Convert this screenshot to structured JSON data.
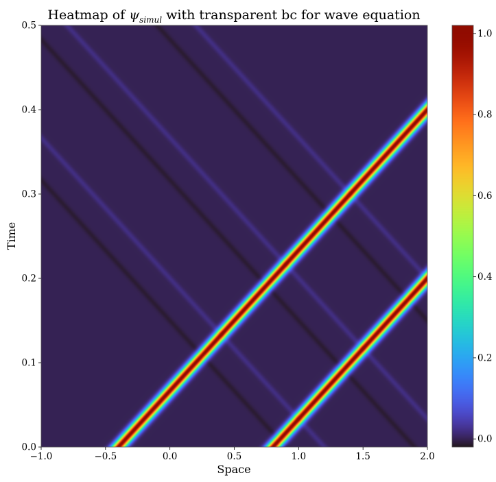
{
  "chart_data": {
    "type": "heatmap",
    "title_prefix": "Heatmap of ",
    "title_symbol": "ψ",
    "title_subscript": "simul",
    "title_suffix": " with transparent bc for wave equation",
    "xlabel": "Space",
    "ylabel": "Time",
    "xlim": [
      -1.0,
      2.0
    ],
    "ylim": [
      0.0,
      0.5
    ],
    "x_ticks": [
      {
        "value": -1.0,
        "label": "−1.0"
      },
      {
        "value": -0.5,
        "label": "−0.5"
      },
      {
        "value": 0.0,
        "label": "0.0"
      },
      {
        "value": 0.5,
        "label": "0.5"
      },
      {
        "value": 1.0,
        "label": "1.0"
      },
      {
        "value": 1.5,
        "label": "1.5"
      },
      {
        "value": 2.0,
        "label": "2.0"
      }
    ],
    "y_ticks": [
      {
        "value": 0.0,
        "label": "0.0"
      },
      {
        "value": 0.1,
        "label": "0.1"
      },
      {
        "value": 0.2,
        "label": "0.2"
      },
      {
        "value": 0.3,
        "label": "0.3"
      },
      {
        "value": 0.4,
        "label": "0.4"
      },
      {
        "value": 0.5,
        "label": "0.5"
      }
    ],
    "colorbar": {
      "range": [
        -0.02,
        1.02
      ],
      "colormap": "turbo",
      "ticks": [
        {
          "value": 0.0,
          "label": "0.0"
        },
        {
          "value": 0.2,
          "label": "0.2"
        },
        {
          "value": 0.4,
          "label": "0.4"
        },
        {
          "value": 0.6,
          "label": "0.6"
        },
        {
          "value": 0.8,
          "label": "0.8"
        },
        {
          "value": 1.0,
          "label": "1.0"
        }
      ]
    },
    "background_value": 0.0,
    "bands": [
      {
        "x_at_t0": -0.4,
        "velocity": 6.0,
        "width": 0.05,
        "amplitude": 1.0
      },
      {
        "x_at_t0": 0.8,
        "velocity": 6.0,
        "width": 0.05,
        "amplitude": 1.0
      }
    ],
    "ripples": [
      {
        "x_at_t0": 0.9,
        "velocity": -6.0,
        "width": 0.03,
        "amplitude": -0.012
      },
      {
        "x_at_t0": 1.2,
        "velocity": -6.0,
        "width": 0.03,
        "amplitude": 0.02
      },
      {
        "x_at_t0": 2.9,
        "velocity": -6.0,
        "width": 0.03,
        "amplitude": -0.012
      },
      {
        "x_at_t0": 3.2,
        "velocity": -6.0,
        "width": 0.03,
        "amplitude": 0.02
      },
      {
        "x_at_t0": 1.9,
        "velocity": -6.0,
        "width": 0.03,
        "amplitude": -0.012
      },
      {
        "x_at_t0": 2.2,
        "velocity": -6.0,
        "width": 0.03,
        "amplitude": 0.02
      }
    ]
  }
}
